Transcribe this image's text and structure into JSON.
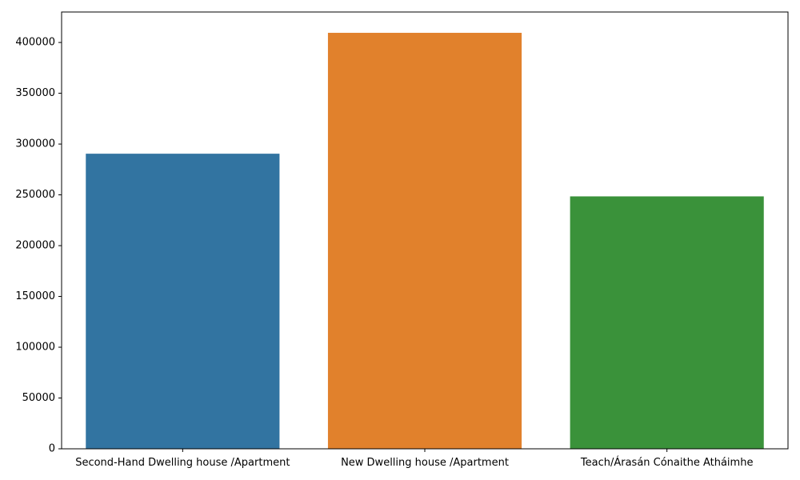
{
  "chart_data": {
    "type": "bar",
    "title": "",
    "xlabel": "",
    "ylabel": "",
    "categories": [
      "Second-Hand Dwelling house /Apartment",
      "New Dwelling house /Apartment",
      "Teach/Árasán Cónaithe Atháimhe"
    ],
    "values": [
      290500,
      409500,
      248500
    ],
    "colors": [
      "#3274a1",
      "#e1812c",
      "#3a923a"
    ],
    "ylim": [
      0,
      430000
    ],
    "yticks": [
      0,
      50000,
      100000,
      150000,
      200000,
      250000,
      300000,
      350000,
      400000
    ],
    "grid": false,
    "legend": "none"
  }
}
